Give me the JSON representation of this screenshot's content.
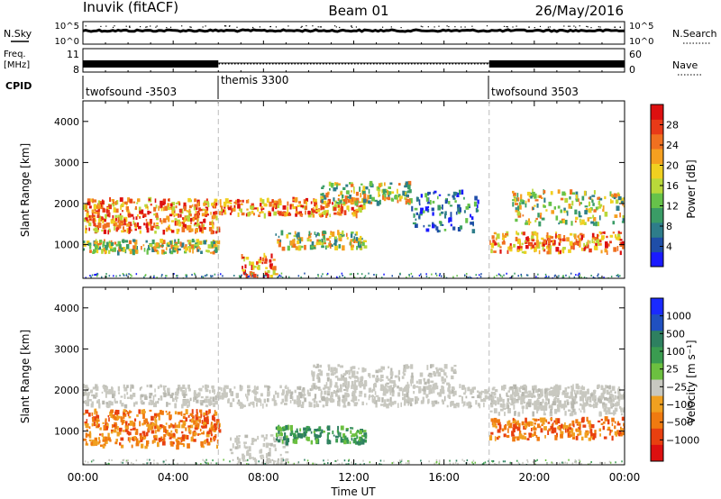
{
  "header": {
    "station": "Inuvik (fitACF)",
    "beam": "Beam 01",
    "date": "26/May/2016"
  },
  "top_panels": {
    "nsky_label": "N.Sky",
    "nsky_ticks": [
      "10^5",
      "10^0"
    ],
    "nsearch_label": "N.Search",
    "nsearch_ticks": [
      "10^5",
      "10^0"
    ],
    "freq_label_line1": "Freq.",
    "freq_label_line2": "[MHz]",
    "freq_ticks": [
      "11",
      "8"
    ],
    "nave_label": "Nave",
    "nave_ticks": [
      "60",
      "0"
    ],
    "cpid_label": "CPID",
    "cpid_segments": [
      {
        "name": "twofsound -3503",
        "start_hour": 0,
        "end_hour": 6
      },
      {
        "name": "themis 3300",
        "start_hour": 6,
        "end_hour": 18
      },
      {
        "name": "twofsound 3503",
        "start_hour": 18,
        "end_hour": 24
      }
    ]
  },
  "chart_data": [
    {
      "type": "heatmap",
      "title": "",
      "xlabel": "Time UT",
      "ylabel": "Slant Range [km]",
      "x_ticks": [
        "00:00",
        "04:00",
        "08:00",
        "12:00",
        "16:00",
        "20:00",
        "00:00"
      ],
      "xlim_hours": [
        0,
        24
      ],
      "ylim": [
        180,
        4500
      ],
      "y_ticks": [
        1000,
        2000,
        3000,
        4000
      ],
      "colorbar": {
        "label": "Power [dB]",
        "ticks": [
          "4",
          "8",
          "12",
          "16",
          "20",
          "24",
          "28"
        ],
        "colors": [
          "#1a1aff",
          "#1f4ea8",
          "#2e7d8a",
          "#3a9c66",
          "#66c24a",
          "#b9d83a",
          "#f0d020",
          "#f5a020",
          "#f07020",
          "#e83a18",
          "#dd1010"
        ]
      },
      "bands": [
        {
          "t0": 0.0,
          "t1": 6.0,
          "r0": 1700,
          "r1": 2100,
          "value": "high"
        },
        {
          "t0": 0.0,
          "t1": 6.0,
          "r0": 1300,
          "r1": 1700,
          "value": "high"
        },
        {
          "t0": 0.0,
          "t1": 6.0,
          "r0": 800,
          "r1": 1100,
          "value": "medium"
        },
        {
          "t0": 6.0,
          "t1": 12.5,
          "r0": 1700,
          "r1": 2100,
          "value": "high"
        },
        {
          "t0": 7.0,
          "t1": 8.5,
          "r0": 200,
          "r1": 800,
          "value": "high"
        },
        {
          "t0": 8.5,
          "t1": 12.5,
          "r0": 900,
          "r1": 1300,
          "value": "medium"
        },
        {
          "t0": 10.5,
          "t1": 14.5,
          "r0": 2000,
          "r1": 2500,
          "value": "medium"
        },
        {
          "t0": 14.5,
          "t1": 17.5,
          "r0": 1300,
          "r1": 2300,
          "value": "low"
        },
        {
          "t0": 18.0,
          "t1": 24.0,
          "r0": 800,
          "r1": 1300,
          "value": "high"
        },
        {
          "t0": 19.0,
          "t1": 24.0,
          "r0": 1500,
          "r1": 2300,
          "value": "medium"
        }
      ]
    },
    {
      "type": "heatmap",
      "title": "",
      "xlabel": "Time UT",
      "ylabel": "Slant Range [km]",
      "x_ticks": [
        "00:00",
        "04:00",
        "08:00",
        "12:00",
        "16:00",
        "20:00",
        "00:00"
      ],
      "xlim_hours": [
        0,
        24
      ],
      "ylim": [
        180,
        4500
      ],
      "y_ticks": [
        1000,
        2000,
        3000,
        4000
      ],
      "colorbar": {
        "label": "Velocity [m s⁻¹]",
        "ticks": [
          "1000",
          "500",
          "100",
          "25",
          "−25",
          "−100",
          "−500",
          "−1000"
        ],
        "colors": [
          "#1a2aff",
          "#2050c0",
          "#2e8060",
          "#3a9c50",
          "#6cc040",
          "#c8c8c0",
          "#f0a020",
          "#f07a10",
          "#e84010",
          "#dd1010"
        ]
      },
      "bands": [
        {
          "t0": 0.0,
          "t1": 24.0,
          "r0": 1600,
          "r1": 2100,
          "value": "ground"
        },
        {
          "t0": 0.0,
          "t1": 6.0,
          "r0": 1100,
          "r1": 1500,
          "value": "negative"
        },
        {
          "t0": 0.0,
          "t1": 6.0,
          "r0": 600,
          "r1": 1100,
          "value": "negative"
        },
        {
          "t0": 6.5,
          "t1": 9.0,
          "r0": 200,
          "r1": 900,
          "value": "ground"
        },
        {
          "t0": 8.5,
          "t1": 12.5,
          "r0": 700,
          "r1": 1100,
          "value": "positive"
        },
        {
          "t0": 10.0,
          "t1": 16.5,
          "r0": 2000,
          "r1": 2600,
          "value": "ground"
        },
        {
          "t0": 18.0,
          "t1": 24.0,
          "r0": 800,
          "r1": 1300,
          "value": "negative"
        },
        {
          "t0": 18.0,
          "t1": 24.0,
          "r0": 1400,
          "r1": 2100,
          "value": "ground"
        }
      ]
    }
  ]
}
